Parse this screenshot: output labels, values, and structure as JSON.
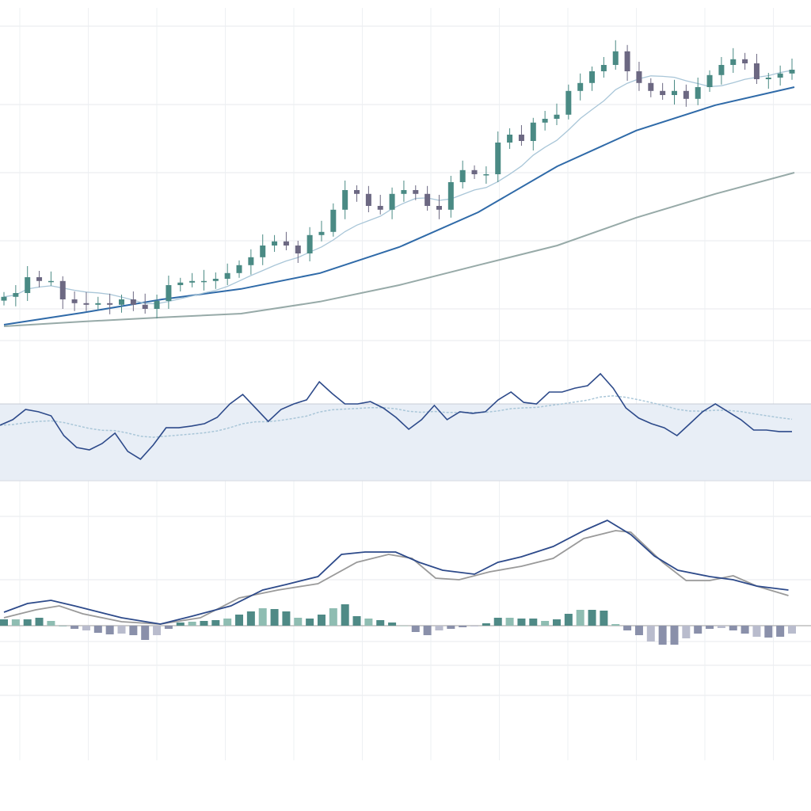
{
  "chart_data": [
    {
      "type": "candlestick",
      "panel": "price",
      "ylim": [
        0,
        100
      ],
      "grid": true,
      "close": [
        13.8,
        15,
        20,
        18.8,
        18.8,
        13,
        11.8,
        11.3,
        11.8,
        11.3,
        13,
        11.3,
        10,
        12.5,
        17.5,
        18.3,
        18.8,
        18.8,
        19.5,
        21.3,
        23.8,
        26.3,
        30,
        31.3,
        30,
        27.5,
        33.3,
        34.3,
        41.3,
        47.5,
        46.3,
        42.5,
        41.3,
        46.3,
        47.5,
        46.3,
        42.5,
        41.3,
        50,
        53.8,
        52.5,
        52.5,
        62.5,
        65,
        63,
        68.8,
        70,
        71.3,
        78.8,
        81.3,
        85,
        87,
        91.3,
        85,
        81.3,
        78.8,
        77.5,
        78.8,
        76.3,
        80,
        83.8,
        87,
        88.8,
        87.5,
        82.5,
        83,
        84.3,
        85.5
      ],
      "overlays": [
        {
          "kind": "short moving average",
          "period": 8,
          "color": "#a9c6d8"
        },
        {
          "kind": "medium moving average",
          "color": "#2f6aa8",
          "values": [
            5,
            8.8,
            13,
            16.3,
            21.3,
            29.5,
            40.5,
            55,
            66.3,
            74.3,
            80
          ]
        },
        {
          "kind": "long moving average",
          "color": "#97aaa8",
          "values": [
            4.5,
            6,
            7.3,
            8.5,
            12.3,
            17.5,
            23.8,
            30,
            38.8,
            46.3,
            53
          ]
        }
      ],
      "colors": {
        "up": "#4a8a84",
        "down": "#6c6882"
      }
    },
    {
      "type": "line",
      "panel": "oscillator",
      "ylim": [
        20,
        95
      ],
      "band": [
        30,
        70
      ],
      "colors": {
        "line": "#2d4a8a",
        "signal": "#a9c6d8",
        "band": "#e8eef6"
      },
      "values": [
        58.9,
        61.8,
        67.1,
        65.9,
        63.8,
        53.5,
        47.3,
        46.1,
        49.4,
        54.8,
        45.3,
        41.2,
        48.6,
        57.6,
        57.6,
        58.5,
        59.7,
        63,
        70,
        74.9,
        67.9,
        60.9,
        67.1,
        70,
        72.1,
        81.5,
        75.4,
        70,
        70,
        71.2,
        67.9,
        63,
        56.8,
        61.8,
        69.2,
        61.8,
        65.9,
        65.1,
        65.9,
        72.1,
        76.2,
        70.8,
        70,
        76.2,
        76.2,
        78.2,
        79.5,
        85.7,
        78.2,
        67.9,
        62.6,
        59.7,
        57.6,
        53.5,
        59.7,
        65.9,
        70,
        65.9,
        61.8,
        56.4,
        56.4,
        55.6,
        55.6
      ]
    },
    {
      "type": "line+bar",
      "panel": "macd",
      "ylim": [
        -0.9,
        1.4
      ],
      "colors": {
        "macd": "#2d4a8a",
        "signal": "#9a9a9a",
        "hist_up": "#4f8a86",
        "hist_down": "#8a90aa"
      },
      "macd": {
        "x": [
          0,
          2,
          4,
          6,
          10,
          13.3,
          16,
          19.3,
          22,
          24,
          26.7,
          28.7,
          30.7,
          33.3,
          35.3,
          37.3,
          40,
          42,
          44,
          46.7,
          49.3,
          51.3,
          53.3,
          55.3,
          57.3,
          60,
          62,
          64,
          66.7
        ],
        "values": [
          0.17,
          0.28,
          0.32,
          0.25,
          0.1,
          0.02,
          0.12,
          0.25,
          0.45,
          0.52,
          0.62,
          0.9,
          0.93,
          0.93,
          0.8,
          0.7,
          0.65,
          0.8,
          0.87,
          1.0,
          1.2,
          1.33,
          1.15,
          0.88,
          0.7,
          0.62,
          0.58,
          0.5,
          0.45
        ]
      },
      "signal": {
        "x": [
          0,
          2.7,
          4.7,
          6.7,
          10,
          13.3,
          16.7,
          20,
          23.3,
          26.7,
          30,
          32.7,
          34.7,
          36.7,
          38.7,
          41.3,
          44,
          46.7,
          49.3,
          52,
          53.3,
          56,
          58,
          60,
          62,
          64,
          66.7
        ],
        "values": [
          0.1,
          0.2,
          0.25,
          0.15,
          0.05,
          0.02,
          0.1,
          0.35,
          0.45,
          0.53,
          0.8,
          0.9,
          0.85,
          0.6,
          0.58,
          0.68,
          0.75,
          0.85,
          1.1,
          1.2,
          1.18,
          0.8,
          0.57,
          0.57,
          0.63,
          0.5,
          0.38
        ]
      },
      "histogram": [
        0.08,
        0.08,
        0.08,
        0.1,
        0.06,
        0,
        -0.04,
        -0.06,
        -0.09,
        -0.11,
        -0.1,
        -0.12,
        -0.18,
        -0.12,
        -0.04,
        0.04,
        0.05,
        0.06,
        0.07,
        0.09,
        0.14,
        0.18,
        0.22,
        0.21,
        0.18,
        0.1,
        0.09,
        0.14,
        0.22,
        0.27,
        0.12,
        0.09,
        0.07,
        0.04,
        0,
        -0.08,
        -0.12,
        -0.06,
        -0.04,
        -0.02,
        -0.01,
        0.03,
        0.1,
        0.1,
        0.09,
        0.09,
        0.06,
        0.08,
        0.15,
        0.2,
        0.2,
        0.19,
        0.02,
        -0.06,
        -0.12,
        -0.2,
        -0.24,
        -0.24,
        -0.16,
        -0.1,
        -0.04,
        -0.03,
        -0.06,
        -0.1,
        -0.14,
        -0.15,
        -0.14,
        -0.1
      ]
    }
  ]
}
